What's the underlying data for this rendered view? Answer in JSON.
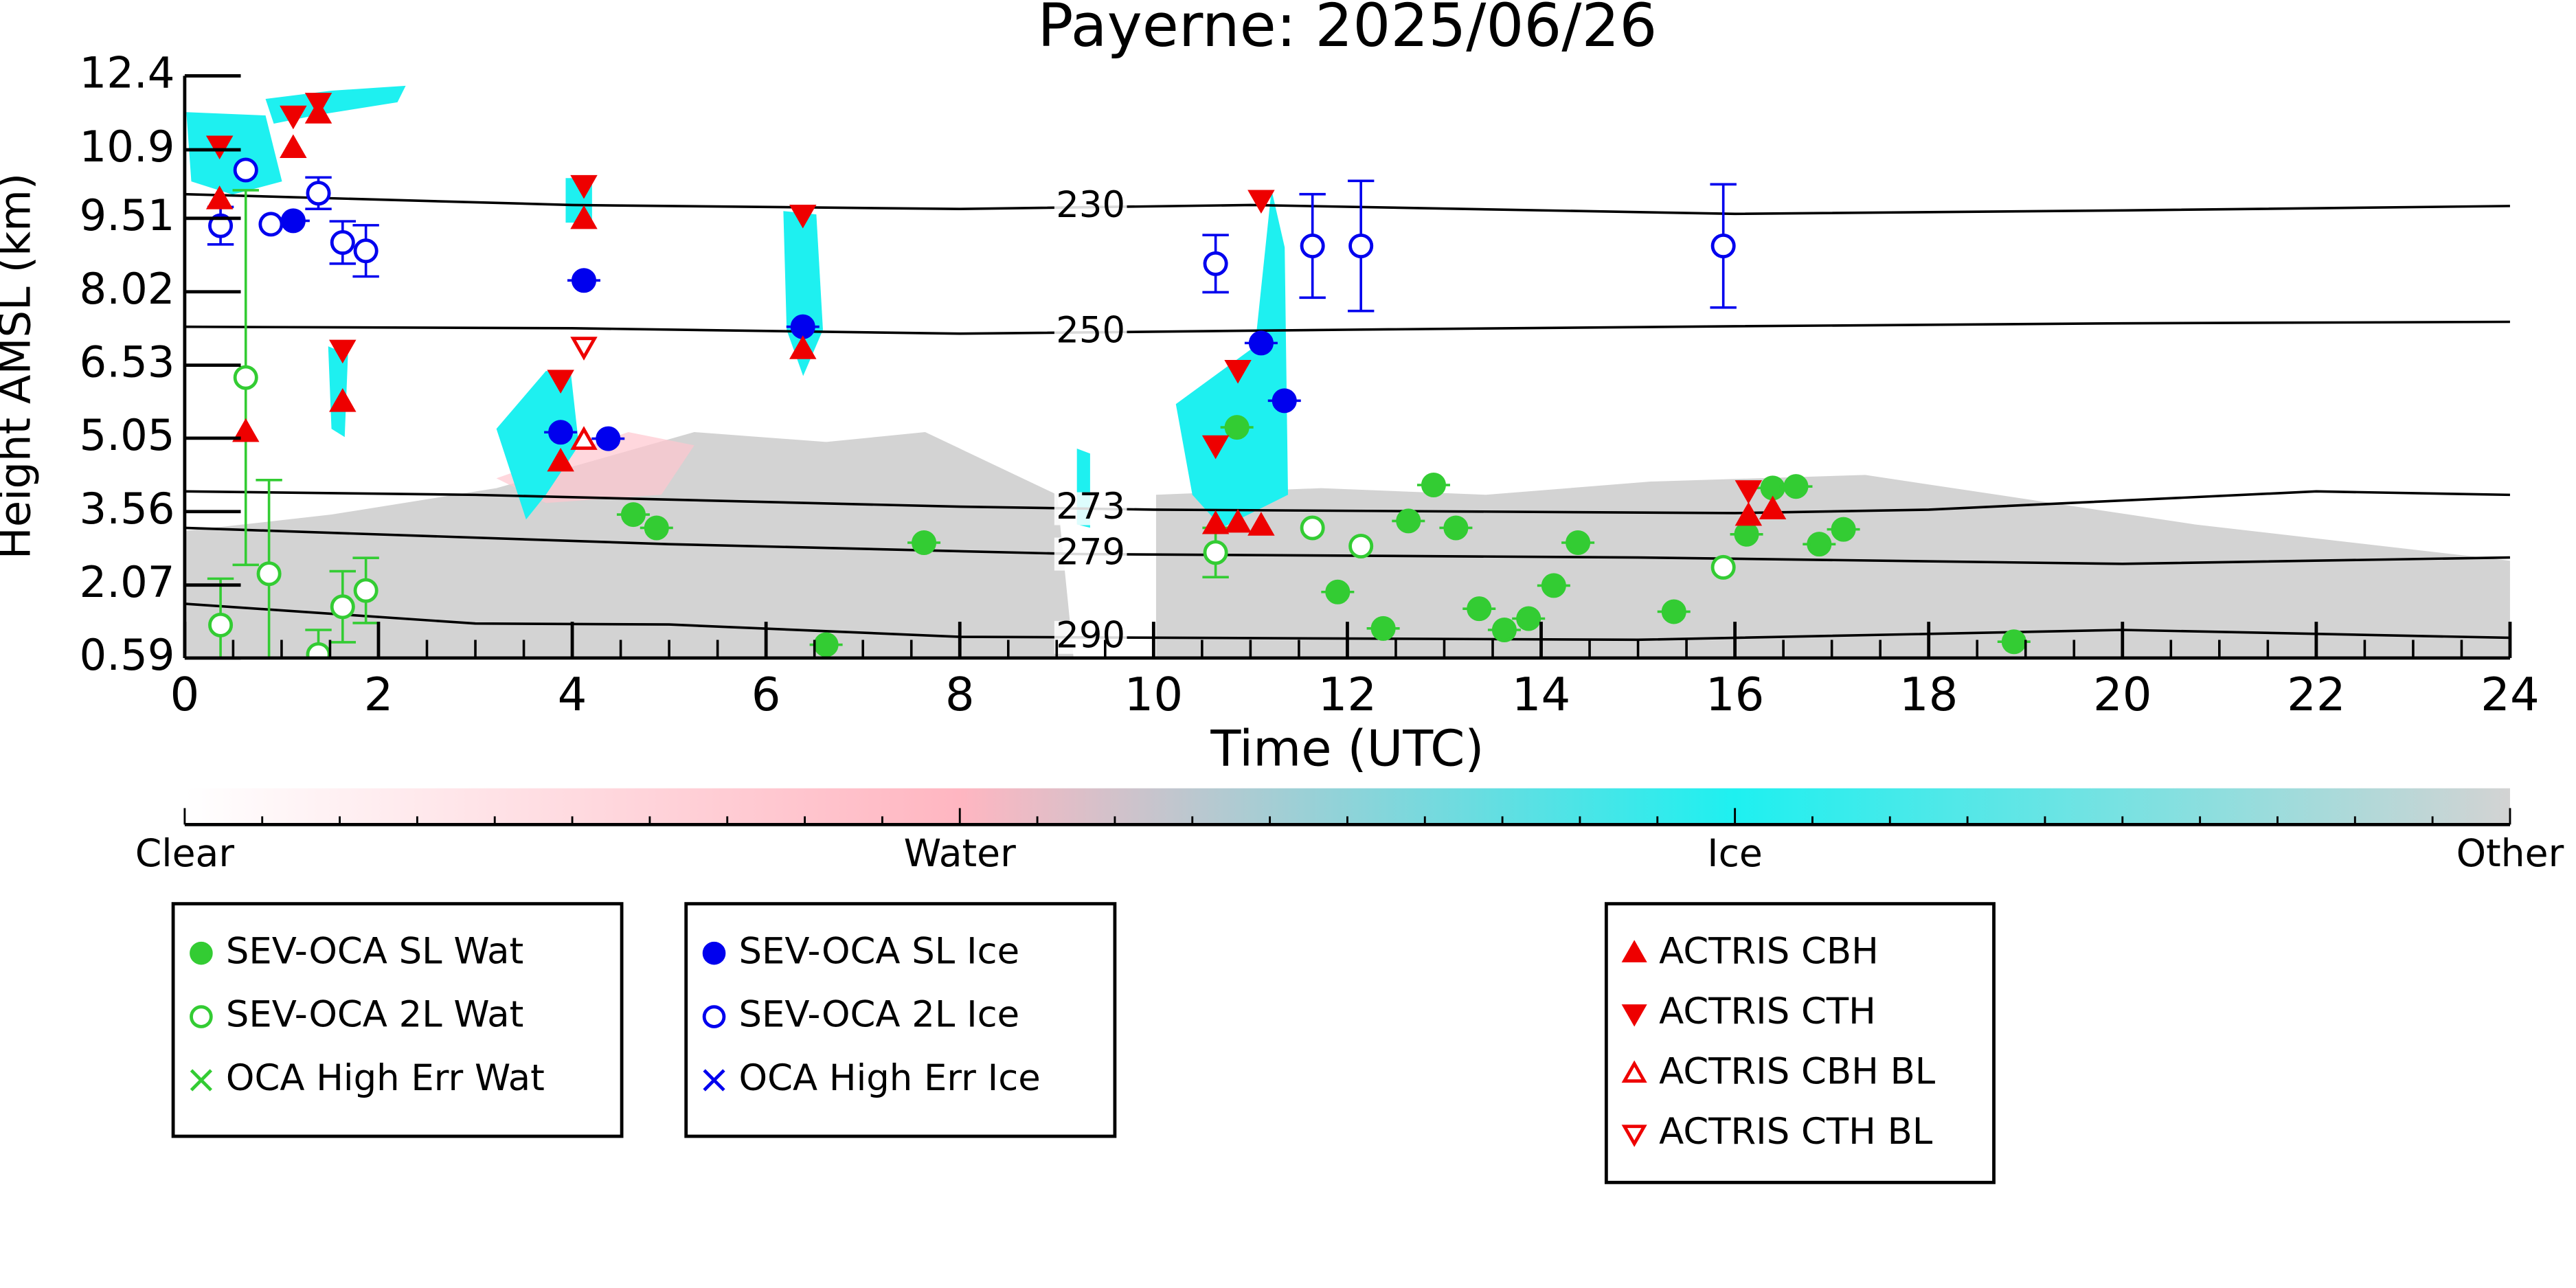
{
  "chart_data": {
    "type": "scatter",
    "title": "Payerne: 2025/06/26",
    "xlabel": "Time (UTC)",
    "ylabel": "Height AMSL (km)",
    "xlim": [
      0,
      24
    ],
    "xticks": [
      0,
      2,
      4,
      6,
      8,
      10,
      12,
      14,
      16,
      18,
      20,
      22,
      24
    ],
    "ylim": [
      0.59,
      12.4
    ],
    "yticks": [
      0.59,
      2.07,
      3.56,
      5.05,
      6.53,
      8.02,
      9.51,
      10.9,
      12.4
    ],
    "contour_color": "#000000",
    "contours": [
      {
        "label": 230,
        "x": [
          0,
          4,
          8,
          11,
          16,
          20,
          24
        ],
        "y": [
          10.0,
          9.78,
          9.7,
          9.78,
          9.6,
          9.67,
          9.76
        ]
      },
      {
        "label": 250,
        "x": [
          0,
          4,
          8,
          12,
          16,
          20,
          24
        ],
        "y": [
          7.31,
          7.28,
          7.17,
          7.25,
          7.32,
          7.38,
          7.41
        ]
      },
      {
        "label": 273,
        "x": [
          0,
          3,
          8,
          10,
          16,
          18,
          22,
          24
        ],
        "y": [
          3.97,
          3.9,
          3.66,
          3.6,
          3.53,
          3.6,
          3.97,
          3.9
        ]
      },
      {
        "label": 279,
        "x": [
          0,
          5,
          9.2,
          15,
          20,
          24
        ],
        "y": [
          3.23,
          2.9,
          2.7,
          2.63,
          2.5,
          2.63
        ]
      },
      {
        "label": 290,
        "x": [
          0,
          3,
          5,
          8,
          15,
          20,
          24
        ],
        "y": [
          1.69,
          1.29,
          1.27,
          1.02,
          0.96,
          1.16,
          1.0
        ]
      }
    ],
    "colorbar": {
      "labels": [
        "Clear",
        "Water",
        "Ice",
        "Other"
      ],
      "colors": [
        "#ffffff",
        "#ffb6c1",
        "#1ef0f0",
        "#d3d3d3"
      ]
    },
    "series": [
      {
        "name": "SEV-OCA SL Wat",
        "color": "#33cc33",
        "marker": "circle",
        "filled": true,
        "x": [
          6.62,
          4.63,
          4.87,
          7.63,
          10.86,
          11.9,
          12.37,
          12.63,
          12.89,
          13.12,
          13.36,
          13.62,
          13.87,
          14.13,
          14.38,
          15.37,
          16.12,
          16.39,
          16.63,
          16.87,
          17.12,
          18.88
        ],
        "values": [
          0.86,
          3.5,
          3.23,
          2.93,
          5.27,
          1.93,
          1.19,
          3.37,
          4.1,
          3.23,
          1.59,
          1.16,
          1.39,
          2.06,
          2.93,
          1.53,
          3.1,
          4.04,
          4.07,
          2.9,
          3.2,
          0.92
        ]
      },
      {
        "name": "SEV-OCA 2L Wat",
        "color": "#33cc33",
        "marker": "circle",
        "filled": false,
        "x": [
          0.37,
          0.63,
          0.87,
          1.38,
          1.63,
          1.87,
          10.64,
          11.64,
          12.14,
          15.88
        ],
        "values": [
          1.26,
          6.28,
          2.3,
          0.66,
          1.63,
          1.96,
          2.73,
          3.23,
          2.86,
          2.43
        ],
        "yerr": [
          0.94,
          3.8,
          1.9,
          0.5,
          0.72,
          0.66,
          0.5,
          null,
          null,
          null
        ]
      },
      {
        "name": "OCA High Err Wat",
        "color": "#33cc33",
        "marker": "x",
        "filled": true,
        "x": [],
        "values": []
      },
      {
        "name": "SEV-OCA SL Ice",
        "color": "#0000ee",
        "marker": "circle",
        "filled": true,
        "x": [
          1.12,
          4.12,
          3.88,
          4.37,
          6.38,
          11.11,
          11.35
        ],
        "values": [
          9.46,
          8.25,
          5.17,
          5.04,
          7.31,
          6.98,
          5.81
        ]
      },
      {
        "name": "SEV-OCA 2L Ice",
        "color": "#0000ee",
        "marker": "circle",
        "filled": false,
        "x": [
          0.37,
          0.63,
          0.89,
          1.38,
          1.63,
          1.87,
          10.64,
          11.64,
          12.14,
          15.88
        ],
        "values": [
          9.36,
          10.49,
          9.39,
          10.02,
          9.02,
          8.85,
          8.59,
          8.95,
          8.95,
          8.95
        ],
        "yerr": [
          0.38,
          null,
          null,
          0.32,
          0.43,
          0.52,
          0.58,
          1.05,
          1.32,
          1.25
        ]
      },
      {
        "name": "OCA High Err Ice",
        "color": "#0000ee",
        "marker": "x",
        "filled": true,
        "x": [],
        "values": []
      },
      {
        "name": "ACTRIS CBH",
        "color": "#ee0000",
        "marker": "triangle-up",
        "filled": true,
        "x": [
          0.36,
          0.63,
          1.12,
          1.38,
          1.63,
          3.88,
          4.12,
          6.38,
          10.64,
          10.87,
          11.11,
          16.14,
          16.39
        ],
        "values": [
          9.89,
          5.17,
          10.93,
          11.63,
          5.78,
          4.57,
          9.49,
          6.85,
          3.3,
          3.33,
          3.27,
          3.47,
          3.6
        ]
      },
      {
        "name": "ACTRIS CTH",
        "color": "#ee0000",
        "marker": "triangle-down",
        "filled": true,
        "x": [
          0.36,
          1.12,
          1.38,
          1.63,
          3.88,
          4.12,
          6.38,
          10.64,
          10.87,
          11.11,
          16.14
        ],
        "values": [
          10.99,
          11.6,
          11.86,
          6.85,
          6.24,
          10.19,
          9.59,
          4.91,
          6.44,
          9.89,
          4.0
        ]
      },
      {
        "name": "ACTRIS CBH BL",
        "color": "#ee0000",
        "marker": "triangle-up",
        "filled": false,
        "x": [
          4.12
        ],
        "values": [
          5.01
        ]
      },
      {
        "name": "ACTRIS CTH BL",
        "color": "#ee0000",
        "marker": "triangle-down",
        "filled": false,
        "x": [
          4.12
        ],
        "values": [
          6.91
        ]
      }
    ]
  }
}
